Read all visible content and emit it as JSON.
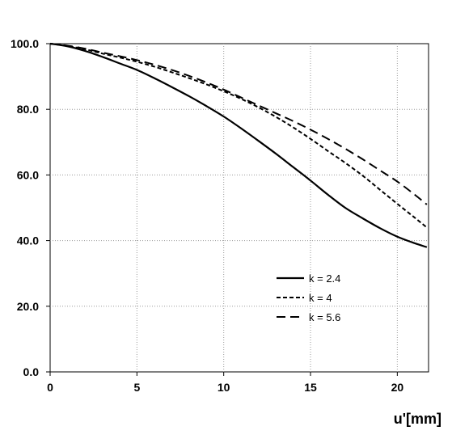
{
  "chart_data": {
    "type": "line",
    "title": "",
    "xlabel": "u'[mm]",
    "ylabel": "",
    "xlim": [
      0,
      21.8
    ],
    "ylim": [
      0,
      100
    ],
    "x_ticks": [
      0,
      5,
      10,
      15,
      20
    ],
    "x_tick_labels": [
      "0",
      "5",
      "10",
      "15",
      "20"
    ],
    "y_ticks": [
      0,
      20,
      40,
      60,
      80,
      100
    ],
    "y_tick_labels": [
      "0.0",
      "20.0",
      "40.0",
      "60.0",
      "80.0",
      "100.0"
    ],
    "grid": true,
    "legend_position": "lower-right",
    "x": [
      0,
      1,
      2,
      3,
      4,
      5,
      6,
      7,
      8,
      9,
      10,
      11,
      12,
      13,
      14,
      15,
      16,
      17,
      18,
      19,
      20,
      21,
      21.7
    ],
    "series": [
      {
        "name": "k = 2.4",
        "dash": "solid",
        "values": [
          100.0,
          99.2,
          97.8,
          96.0,
          94.0,
          92.0,
          89.5,
          86.8,
          84.0,
          81.0,
          77.8,
          74.2,
          70.4,
          66.5,
          62.4,
          58.3,
          54.0,
          50.0,
          46.8,
          43.8,
          41.2,
          39.2,
          38.0
        ]
      },
      {
        "name": "k = 4",
        "dash": "short",
        "values": [
          100.0,
          99.3,
          98.3,
          97.0,
          95.8,
          94.5,
          93.0,
          91.3,
          89.5,
          87.6,
          85.5,
          83.2,
          80.6,
          77.7,
          74.5,
          71.0,
          67.3,
          63.7,
          59.8,
          55.5,
          51.2,
          47.0,
          44.0
        ]
      },
      {
        "name": "k = 5.6",
        "dash": "long",
        "values": [
          100.0,
          99.4,
          98.5,
          97.3,
          96.2,
          95.0,
          93.6,
          92.0,
          90.2,
          88.2,
          86.0,
          83.6,
          81.2,
          78.8,
          76.4,
          73.8,
          71.0,
          68.0,
          64.8,
          61.4,
          58.0,
          54.0,
          51.0
        ]
      }
    ]
  }
}
